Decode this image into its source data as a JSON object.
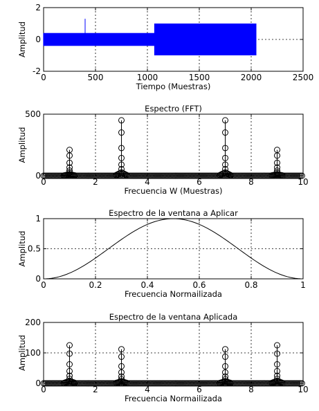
{
  "chart_data": [
    {
      "type": "line",
      "title": "",
      "xlabel": "Tiempo (Muestras)",
      "ylabel": "Amplitud",
      "xlim": [
        0,
        2500
      ],
      "ylim": [
        -2,
        2
      ],
      "xticks": [
        0,
        500,
        1000,
        1500,
        2000,
        2500
      ],
      "yticks": [
        -2,
        0,
        2
      ],
      "grid": true,
      "color": "#0000ff",
      "segments": [
        {
          "x_start": 0,
          "x_end": 1070,
          "amplitude": 0.4
        },
        {
          "x_start": 1070,
          "x_end": 2048,
          "amplitude": 1.0
        }
      ],
      "spike": {
        "x": 400,
        "y_from": 0,
        "y_to": 1.3
      }
    },
    {
      "type": "scatter",
      "title": "Espectro (FFT)",
      "xlabel": "Frecuencia W (Muestras)",
      "ylabel": "Amplitud",
      "xlim": [
        0,
        10
      ],
      "ylim": [
        0,
        500
      ],
      "xticks": [
        0,
        2,
        4,
        6,
        8,
        10
      ],
      "yticks": [
        0,
        500
      ],
      "grid": true,
      "marker": "stem-circle",
      "peaks": [
        {
          "x": 1,
          "y": 210
        },
        {
          "x": 3,
          "y": 450
        },
        {
          "x": 7,
          "y": 450
        },
        {
          "x": 9,
          "y": 210
        }
      ]
    },
    {
      "type": "line",
      "title": "Espectro de la ventana a Aplicar",
      "xlabel": "Frecuencia Normailizada",
      "ylabel": "Amplitud",
      "xlim": [
        0,
        1
      ],
      "ylim": [
        0,
        1
      ],
      "xticks": [
        0,
        0.2,
        0.4,
        0.6,
        0.8,
        1
      ],
      "yticks": [
        0,
        0.5,
        1
      ],
      "grid": true,
      "color": "#000000",
      "series": [
        {
          "x": [
            0,
            0.1,
            0.2,
            0.3,
            0.4,
            0.5,
            0.6,
            0.7,
            0.8,
            0.9,
            1.0
          ],
          "values": [
            0,
            0.095,
            0.345,
            0.655,
            0.905,
            1.0,
            0.905,
            0.655,
            0.345,
            0.095,
            0
          ]
        }
      ]
    },
    {
      "type": "scatter",
      "title": "Espectro de la ventana Aplicada",
      "xlabel": "Frecuencia Normailizada",
      "ylabel": "Amplitud",
      "xlim": [
        0,
        10
      ],
      "ylim": [
        0,
        200
      ],
      "xticks": [
        0,
        2,
        4,
        6,
        8,
        10
      ],
      "yticks": [
        0,
        100,
        200
      ],
      "grid": true,
      "marker": "stem-circle",
      "peaks": [
        {
          "x": 1,
          "y": 125
        },
        {
          "x": 3,
          "y": 112
        },
        {
          "x": 7,
          "y": 112
        },
        {
          "x": 9,
          "y": 125
        }
      ]
    }
  ]
}
